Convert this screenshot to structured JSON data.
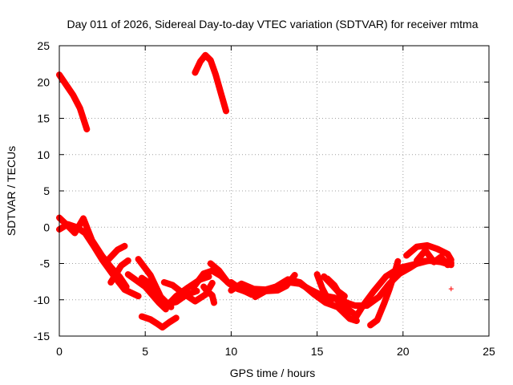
{
  "chart_data": {
    "type": "scatter",
    "title": "Day 011 of 2026, Sidereal Day-to-day VTEC variation (SDTVAR) for receiver mtma",
    "xlabel": "GPS time / hours",
    "ylabel": "SDTVAR / TECUs",
    "xlim": [
      0,
      25
    ],
    "ylim": [
      -15,
      25
    ],
    "xticks": [
      "0",
      "5",
      "10",
      "15",
      "20",
      "25"
    ],
    "yticks": [
      "-15",
      "-10",
      "-5",
      "0",
      "5",
      "10",
      "15",
      "20",
      "25"
    ],
    "grid": true,
    "marker": "+",
    "color": "#ff0000",
    "series": [
      {
        "name": "track-1",
        "points": [
          [
            0.0,
            21.0
          ],
          [
            0.4,
            19.6
          ],
          [
            0.8,
            18.2
          ],
          [
            1.2,
            16.4
          ],
          [
            1.6,
            13.5
          ]
        ]
      },
      {
        "name": "track-2",
        "points": [
          [
            7.9,
            21.3
          ],
          [
            8.2,
            22.8
          ],
          [
            8.5,
            23.7
          ],
          [
            8.8,
            23.0
          ],
          [
            9.1,
            21.0
          ],
          [
            9.4,
            18.5
          ],
          [
            9.7,
            16.0
          ]
        ]
      },
      {
        "name": "track-3",
        "points": [
          [
            0.0,
            1.3
          ],
          [
            0.4,
            0.4
          ],
          [
            0.9,
            -0.8
          ],
          [
            1.4,
            1.2
          ],
          [
            1.9,
            -1.8
          ],
          [
            2.5,
            -4.0
          ],
          [
            3.0,
            -5.5
          ],
          [
            3.5,
            -6.8
          ],
          [
            3.9,
            -8.2
          ]
        ]
      },
      {
        "name": "track-4",
        "points": [
          [
            0.0,
            -0.3
          ],
          [
            0.5,
            0.4
          ],
          [
            1.0,
            0.0
          ],
          [
            1.5,
            -0.8
          ],
          [
            2.0,
            -2.6
          ],
          [
            2.5,
            -4.5
          ],
          [
            3.2,
            -6.8
          ],
          [
            3.8,
            -8.6
          ],
          [
            4.6,
            -9.5
          ]
        ]
      },
      {
        "name": "track-5",
        "points": [
          [
            2.8,
            -4.6
          ],
          [
            3.4,
            -3.1
          ],
          [
            3.8,
            -2.6
          ]
        ]
      },
      {
        "name": "track-6",
        "points": [
          [
            3.0,
            -7.6
          ],
          [
            3.6,
            -5.3
          ],
          [
            4.0,
            -4.6
          ]
        ]
      },
      {
        "name": "track-7",
        "points": [
          [
            4.0,
            -6.5
          ],
          [
            5.0,
            -8.2
          ],
          [
            5.8,
            -10.4
          ],
          [
            6.2,
            -11.3
          ]
        ]
      },
      {
        "name": "track-8",
        "points": [
          [
            4.8,
            -7.0
          ],
          [
            5.3,
            -7.8
          ],
          [
            5.8,
            -9.7
          ],
          [
            6.2,
            -10.6
          ],
          [
            6.8,
            -10.3
          ],
          [
            7.4,
            -9.3
          ],
          [
            8.0,
            -8.8
          ]
        ]
      },
      {
        "name": "track-9",
        "points": [
          [
            4.6,
            -4.4
          ],
          [
            5.3,
            -6.6
          ],
          [
            5.9,
            -9.6
          ],
          [
            6.5,
            -11.0
          ]
        ]
      },
      {
        "name": "track-10",
        "points": [
          [
            6.2,
            -11.0
          ],
          [
            6.8,
            -9.5
          ],
          [
            7.5,
            -8.3
          ],
          [
            8.2,
            -7.2
          ],
          [
            8.7,
            -6.8
          ]
        ]
      },
      {
        "name": "track-11",
        "points": [
          [
            6.1,
            -7.6
          ],
          [
            6.6,
            -8.0
          ],
          [
            7.2,
            -9.1
          ],
          [
            7.9,
            -10.2
          ],
          [
            8.5,
            -9.3
          ],
          [
            8.9,
            -7.7
          ]
        ]
      },
      {
        "name": "track-12",
        "points": [
          [
            7.8,
            -8.3
          ],
          [
            8.4,
            -6.4
          ],
          [
            8.9,
            -6.0
          ],
          [
            9.4,
            -6.7
          ],
          [
            9.9,
            -7.8
          ],
          [
            10.4,
            -8.5
          ]
        ]
      },
      {
        "name": "track-13",
        "points": [
          [
            8.8,
            -5.0
          ],
          [
            9.3,
            -6.0
          ],
          [
            9.8,
            -7.6
          ],
          [
            10.4,
            -8.5
          ],
          [
            11.0,
            -9.0
          ],
          [
            11.6,
            -8.7
          ]
        ]
      },
      {
        "name": "track-14",
        "points": [
          [
            8.4,
            -8.2
          ],
          [
            8.6,
            -8.8
          ],
          [
            8.9,
            -9.4
          ],
          [
            9.0,
            -10.4
          ]
        ]
      },
      {
        "name": "track-15",
        "points": [
          [
            10.0,
            -8.7
          ],
          [
            10.6,
            -7.8
          ],
          [
            11.3,
            -8.5
          ],
          [
            12.0,
            -8.6
          ],
          [
            12.7,
            -8.2
          ],
          [
            13.4,
            -7.6
          ],
          [
            14.0,
            -7.8
          ],
          [
            14.6,
            -8.6
          ],
          [
            15.3,
            -9.4
          ],
          [
            16.0,
            -9.7
          ],
          [
            16.8,
            -11.3
          ],
          [
            17.3,
            -12.2
          ]
        ]
      },
      {
        "name": "track-16",
        "points": [
          [
            10.0,
            -7.6
          ],
          [
            10.6,
            -8.6
          ],
          [
            11.2,
            -9.3
          ],
          [
            11.9,
            -8.7
          ],
          [
            12.6,
            -8.2
          ],
          [
            13.3,
            -7.2
          ],
          [
            14.0,
            -7.6
          ],
          [
            14.8,
            -9.2
          ],
          [
            15.5,
            -10.4
          ],
          [
            16.2,
            -11.0
          ],
          [
            16.9,
            -12.6
          ],
          [
            17.3,
            -12.9
          ]
        ]
      },
      {
        "name": "track-17",
        "points": [
          [
            11.4,
            -9.6
          ],
          [
            12.0,
            -8.8
          ],
          [
            12.7,
            -8.7
          ],
          [
            13.2,
            -8.1
          ],
          [
            13.7,
            -6.6
          ]
        ]
      },
      {
        "name": "track-18",
        "points": [
          [
            15.0,
            -6.5
          ],
          [
            15.3,
            -8.4
          ],
          [
            15.6,
            -9.8
          ],
          [
            15.9,
            -9.9
          ]
        ]
      },
      {
        "name": "track-19",
        "points": [
          [
            15.4,
            -6.8
          ],
          [
            15.8,
            -7.8
          ],
          [
            16.2,
            -8.8
          ],
          [
            16.6,
            -9.5
          ]
        ]
      },
      {
        "name": "track-20",
        "points": [
          [
            15.6,
            -7.1
          ],
          [
            16.0,
            -8.0
          ],
          [
            16.3,
            -9.2
          ],
          [
            16.6,
            -10.2
          ]
        ]
      },
      {
        "name": "track-21",
        "points": [
          [
            16.6,
            -10.3
          ],
          [
            17.2,
            -10.8
          ],
          [
            17.9,
            -10.8
          ],
          [
            18.6,
            -9.6
          ],
          [
            19.2,
            -7.8
          ],
          [
            19.8,
            -6.4
          ],
          [
            20.4,
            -5.6
          ],
          [
            21.0,
            -4.7
          ],
          [
            21.8,
            -4.6
          ],
          [
            22.6,
            -4.8
          ],
          [
            22.8,
            -4.9
          ]
        ]
      },
      {
        "name": "track-22",
        "points": [
          [
            17.2,
            -12.6
          ],
          [
            17.7,
            -10.7
          ],
          [
            18.3,
            -8.8
          ],
          [
            19.0,
            -6.8
          ],
          [
            19.8,
            -5.6
          ],
          [
            20.7,
            -5.1
          ],
          [
            21.5,
            -4.6
          ],
          [
            22.2,
            -4.8
          ],
          [
            22.8,
            -5.2
          ]
        ]
      },
      {
        "name": "track-23",
        "points": [
          [
            18.1,
            -13.5
          ],
          [
            18.5,
            -12.8
          ],
          [
            18.9,
            -10.5
          ],
          [
            19.2,
            -8.6
          ],
          [
            19.5,
            -6.4
          ],
          [
            19.7,
            -4.7
          ]
        ]
      },
      {
        "name": "track-24",
        "points": [
          [
            20.2,
            -3.9
          ],
          [
            20.8,
            -2.7
          ],
          [
            21.4,
            -2.5
          ],
          [
            22.0,
            -3.0
          ],
          [
            22.6,
            -3.7
          ],
          [
            22.8,
            -4.5
          ]
        ]
      },
      {
        "name": "track-25",
        "points": [
          [
            20.8,
            -4.6
          ],
          [
            21.3,
            -3.2
          ],
          [
            21.8,
            -4.8
          ],
          [
            22.2,
            -4.1
          ],
          [
            22.6,
            -5.2
          ]
        ]
      },
      {
        "name": "track-26",
        "points": [
          [
            4.8,
            -12.3
          ],
          [
            5.3,
            -12.7
          ],
          [
            5.7,
            -13.3
          ],
          [
            6.0,
            -13.8
          ],
          [
            6.4,
            -13.1
          ],
          [
            6.8,
            -12.5
          ]
        ]
      },
      {
        "name": "isolated",
        "points": [
          [
            22.8,
            -8.5
          ]
        ]
      }
    ]
  }
}
